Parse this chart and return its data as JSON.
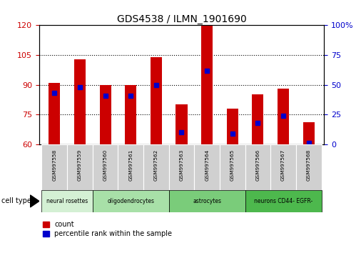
{
  "title": "GDS4538 / ILMN_1901690",
  "samples": [
    "GSM997558",
    "GSM997559",
    "GSM997560",
    "GSM997561",
    "GSM997562",
    "GSM997563",
    "GSM997564",
    "GSM997565",
    "GSM997566",
    "GSM997567",
    "GSM997568"
  ],
  "counts": [
    91,
    103,
    90,
    90,
    104,
    80,
    120,
    78,
    85,
    88,
    71
  ],
  "percentiles": [
    43,
    48,
    41,
    41,
    50,
    10,
    62,
    9,
    18,
    24,
    1
  ],
  "ylim_left": [
    60,
    120
  ],
  "ylim_right": [
    0,
    100
  ],
  "yticks_left": [
    60,
    75,
    90,
    105,
    120
  ],
  "yticks_right": [
    0,
    25,
    50,
    75,
    100
  ],
  "cell_types": [
    {
      "label": "neural rosettes",
      "start": 0,
      "end": 2,
      "color": "#d4f0d4"
    },
    {
      "label": "oligodendrocytes",
      "start": 2,
      "end": 5,
      "color": "#a8e0a8"
    },
    {
      "label": "astrocytes",
      "start": 5,
      "end": 8,
      "color": "#7acc7a"
    },
    {
      "label": "neurons CD44- EGFR-",
      "start": 8,
      "end": 11,
      "color": "#4db84d"
    }
  ],
  "bar_color": "#cc0000",
  "percentile_color": "#0000cc",
  "bar_width": 0.45,
  "tick_label_color_left": "#cc0000",
  "tick_label_color_right": "#0000cc",
  "bg_color": "#ffffff",
  "plot_bg_color": "#ffffff",
  "gridline_ticks": [
    75,
    90,
    105
  ]
}
